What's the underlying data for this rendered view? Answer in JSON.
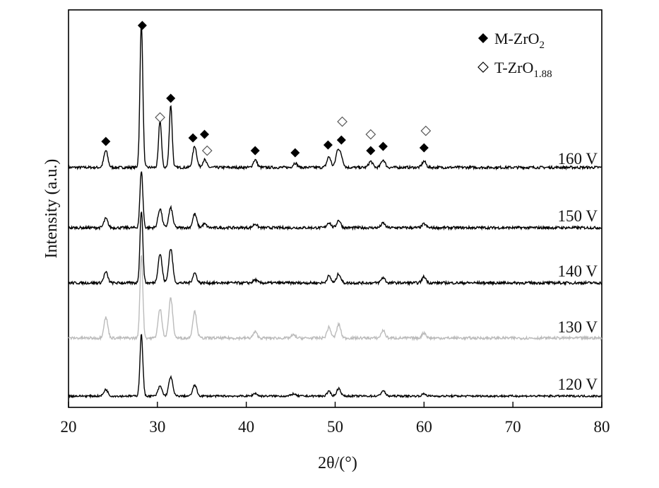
{
  "chart_data": {
    "type": "line",
    "xlabel": "2θ/(°)",
    "ylabel": "Intensity (a.u.)",
    "xlim": [
      20,
      80
    ],
    "xticks": [
      20,
      30,
      40,
      50,
      60,
      70,
      80
    ],
    "legend": {
      "placement": "top-right",
      "entries": [
        {
          "marker": "filled-diamond",
          "main": "M-ZrO",
          "sub": "2"
        },
        {
          "marker": "open-diamond",
          "main": "T-ZrO",
          "sub": "1.88"
        }
      ]
    },
    "series": [
      {
        "name": "160 V",
        "color": "#000000",
        "peaks": [
          [
            24.2,
            0.22
          ],
          [
            28.2,
            1.9
          ],
          [
            30.3,
            0.62
          ],
          [
            31.5,
            0.82
          ],
          [
            34.2,
            0.28
          ],
          [
            35.3,
            0.1
          ],
          [
            41.0,
            0.1
          ],
          [
            45.5,
            0.06
          ],
          [
            49.3,
            0.14
          ],
          [
            50.3,
            0.22
          ],
          [
            50.7,
            0.12
          ],
          [
            54.0,
            0.08
          ],
          [
            55.4,
            0.1
          ],
          [
            60.0,
            0.08
          ]
        ],
        "baseline": 0.03,
        "markers": [
          {
            "type": "filled",
            "x": 24.2
          },
          {
            "type": "filled",
            "x": 28.3
          },
          {
            "type": "filled",
            "x": 31.5
          },
          {
            "type": "filled",
            "x": 34.0
          },
          {
            "type": "filled",
            "x": 35.3
          },
          {
            "type": "filled",
            "x": 41.0
          },
          {
            "type": "filled",
            "x": 45.5
          },
          {
            "type": "filled",
            "x": 49.2
          },
          {
            "type": "filled",
            "x": 50.7
          },
          {
            "type": "filled",
            "x": 54.0
          },
          {
            "type": "filled",
            "x": 55.4
          },
          {
            "type": "filled",
            "x": 60.0
          },
          {
            "type": "open",
            "x": 30.3
          },
          {
            "type": "open",
            "x": 35.6
          },
          {
            "type": "open",
            "x": 50.8
          },
          {
            "type": "open",
            "x": 54.0
          },
          {
            "type": "open",
            "x": 60.2
          }
        ]
      },
      {
        "name": "150 V",
        "color": "#000000",
        "peaks": [
          [
            24.2,
            0.12
          ],
          [
            28.2,
            0.75
          ],
          [
            30.3,
            0.25
          ],
          [
            31.5,
            0.26
          ],
          [
            34.2,
            0.18
          ],
          [
            35.3,
            0.05
          ],
          [
            41.0,
            0.05
          ],
          [
            49.3,
            0.07
          ],
          [
            50.4,
            0.1
          ],
          [
            55.4,
            0.06
          ],
          [
            60.0,
            0.05
          ]
        ],
        "baseline": 0.0
      },
      {
        "name": "140 V",
        "color": "#000000",
        "peaks": [
          [
            24.2,
            0.14
          ],
          [
            28.2,
            0.95
          ],
          [
            30.3,
            0.38
          ],
          [
            31.5,
            0.45
          ],
          [
            34.2,
            0.13
          ],
          [
            41.0,
            0.04
          ],
          [
            49.3,
            0.09
          ],
          [
            50.4,
            0.12
          ],
          [
            55.4,
            0.07
          ],
          [
            60.0,
            0.08
          ]
        ],
        "baseline": 0.0
      },
      {
        "name": "130 V",
        "color": "#bbbbbb",
        "peaks": [
          [
            24.2,
            0.27
          ],
          [
            28.2,
            1.1
          ],
          [
            30.3,
            0.38
          ],
          [
            31.5,
            0.52
          ],
          [
            34.2,
            0.35
          ],
          [
            41.0,
            0.08
          ],
          [
            45.3,
            0.04
          ],
          [
            49.3,
            0.14
          ],
          [
            50.4,
            0.18
          ],
          [
            55.4,
            0.1
          ],
          [
            60.0,
            0.07
          ]
        ],
        "baseline": 0.0
      },
      {
        "name": "120 V",
        "color": "#000000",
        "peaks": [
          [
            24.2,
            0.12
          ],
          [
            28.2,
            1.12
          ],
          [
            30.3,
            0.18
          ],
          [
            31.5,
            0.35
          ],
          [
            34.2,
            0.2
          ],
          [
            41.0,
            0.05
          ],
          [
            45.3,
            0.04
          ],
          [
            49.3,
            0.08
          ],
          [
            50.4,
            0.14
          ],
          [
            55.4,
            0.1
          ],
          [
            60.0,
            0.04
          ]
        ],
        "baseline": 0.0
      }
    ]
  }
}
